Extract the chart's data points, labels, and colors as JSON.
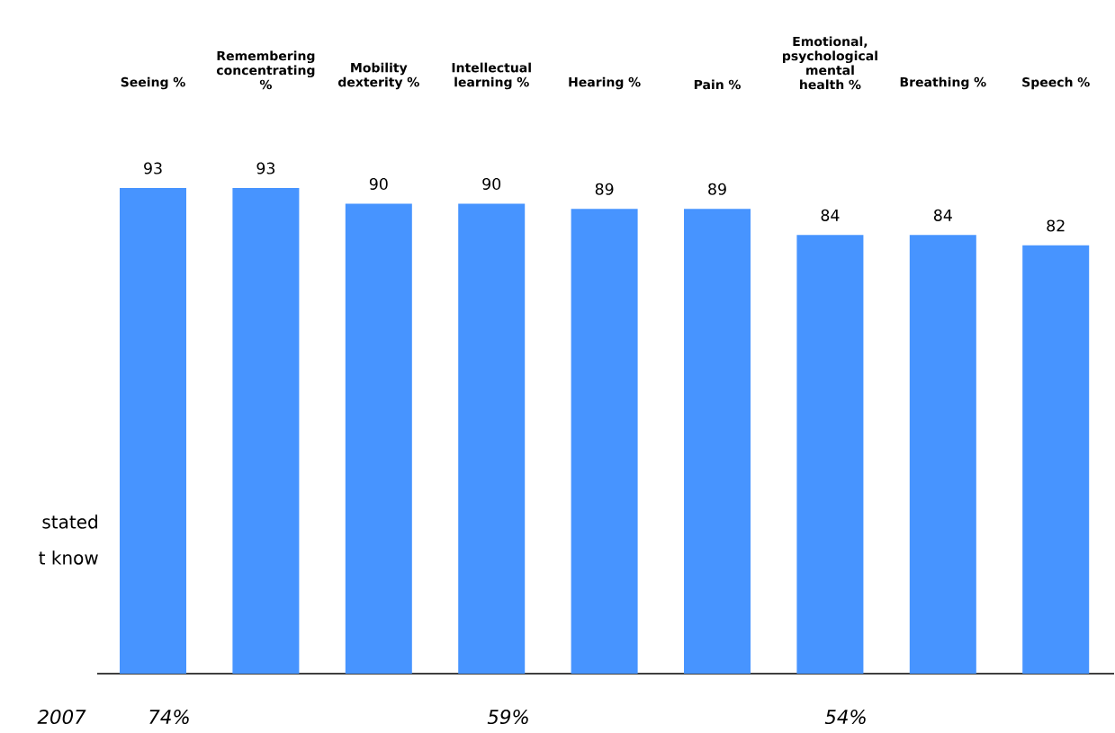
{
  "chart_data": {
    "type": "bar",
    "categories": [
      "Seeing %",
      "Remembering concentrating %",
      "Mobility dexterity %",
      "Intellectual learning %",
      "Hearing %",
      "Pain %",
      "Emotional, psychological mental health %",
      "Breathing %",
      "Speech %"
    ],
    "values": [
      93,
      93,
      90,
      90,
      89,
      89,
      84,
      84,
      82
    ],
    "color": "#4794ff",
    "data_labels": true,
    "annotations": [
      "stated",
      "t know",
      "2007",
      "74%",
      "59%",
      "54%"
    ]
  }
}
